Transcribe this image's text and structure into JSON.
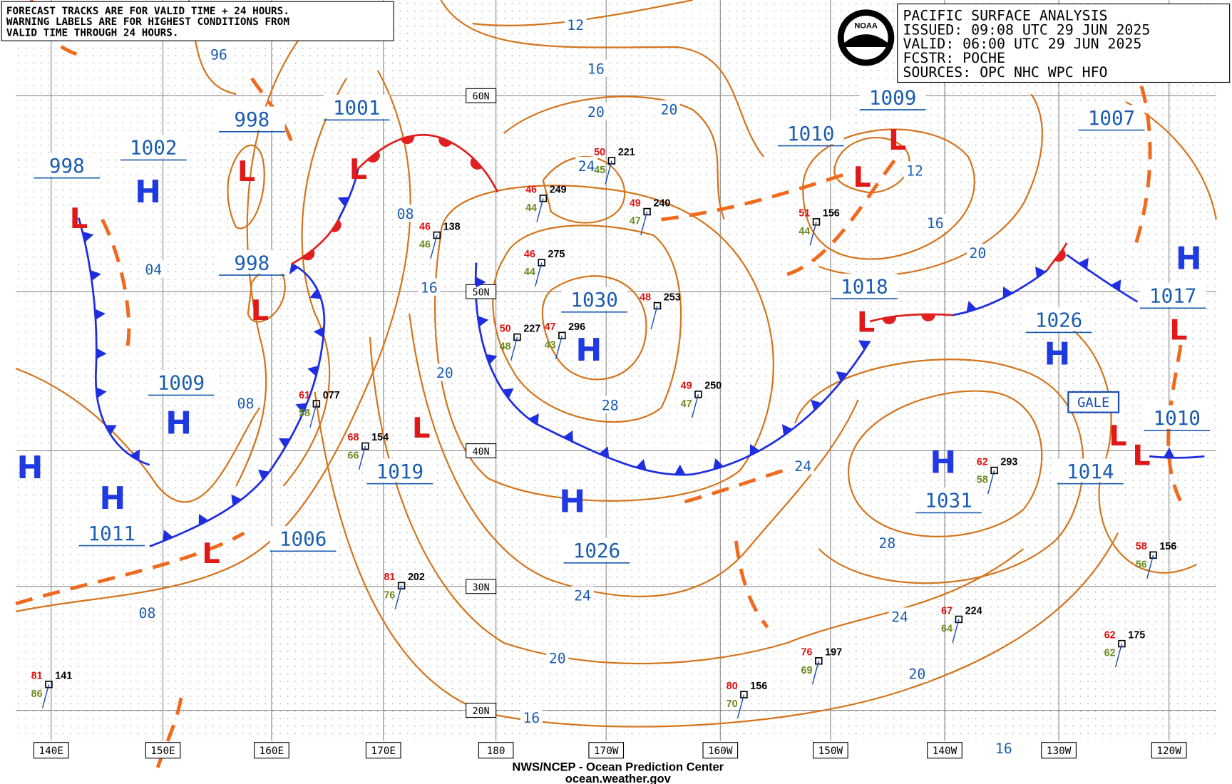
{
  "notes": [
    "FORECAST TRACKS ARE FOR VALID TIME + 24 HOURS.",
    "WARNING LABELS ARE FOR HIGHEST CONDITIONS FROM",
    "VALID TIME THROUGH 24 HOURS."
  ],
  "info_box": [
    "PACIFIC SURFACE ANALYSIS",
    "ISSUED:  09:08 UTC 29 JUN 2025",
    "VALID:   06:00 UTC 29 JUN 2025",
    "FCSTR:   POCHE",
    "SOURCES: OPC NHC WPC HFO"
  ],
  "logo": "NOAA",
  "centers": [
    {
      "type": "H"
    },
    {
      "type": "H"
    },
    {
      "type": "H"
    },
    {
      "type": "H"
    },
    {
      "type": "H"
    },
    {
      "type": "H"
    },
    {
      "type": "H"
    },
    {
      "type": "H"
    },
    {
      "type": "H"
    },
    {
      "type": "L"
    },
    {
      "type": "L"
    },
    {
      "type": "L"
    },
    {
      "type": "L"
    },
    {
      "type": "L"
    },
    {
      "type": "L"
    },
    {
      "type": "L"
    },
    {
      "type": "L"
    },
    {
      "type": "L"
    },
    {
      "type": "L"
    },
    {
      "type": "L"
    },
    {
      "type": "L"
    }
  ],
  "pressure_labels": [
    "1002",
    "1009",
    "1011",
    "1026",
    "1030",
    "1031",
    "1026",
    "1017",
    "1010",
    "1007",
    "1014",
    "1019",
    "1006",
    "1018",
    "1009",
    "1010",
    "1001",
    "998",
    "998",
    "998"
  ],
  "isobar_labels": [
    "96",
    "12",
    "16",
    "20",
    "20",
    "24",
    "08",
    "04",
    "16",
    "20",
    "08",
    "28",
    "24",
    "16",
    "20",
    "12",
    "28",
    "24",
    "24",
    "20",
    "20",
    "16",
    "16",
    "08"
  ],
  "latitude_labels": [
    "60N",
    "50N",
    "40N",
    "30N",
    "20N"
  ],
  "longitude_labels": [
    "140E",
    "150E",
    "160E",
    "170E",
    "180",
    "170W",
    "160W",
    "150W",
    "140W",
    "130W",
    "120W"
  ],
  "warning_label": "GALE",
  "stations": [
    {
      "pressure": "221",
      "temp": "50",
      "dewpoint": "45"
    },
    {
      "pressure": "249",
      "temp": "46",
      "dewpoint": "44"
    },
    {
      "pressure": "240",
      "temp": "49",
      "dewpoint": "47"
    },
    {
      "pressure": "138",
      "temp": "46",
      "dewpoint": "46"
    },
    {
      "pressure": "275",
      "temp": "46",
      "dewpoint": "44"
    },
    {
      "pressure": "253",
      "temp": "48"
    },
    {
      "pressure": "227",
      "temp": "50",
      "dewpoint": "48"
    },
    {
      "pressure": "296",
      "temp": "47",
      "dewpoint": "43"
    },
    {
      "pressure": "250",
      "temp": "49",
      "dewpoint": "47"
    },
    {
      "pressure": "156",
      "temp": "51",
      "dewpoint": "44"
    },
    {
      "pressure": "293",
      "temp": "62",
      "dewpoint": "58"
    },
    {
      "pressure": "224",
      "temp": "67",
      "dewpoint": "64"
    },
    {
      "pressure": "175",
      "temp": "62",
      "dewpoint": "62"
    },
    {
      "pressure": "197",
      "temp": "76",
      "dewpoint": "69"
    },
    {
      "pressure": "156",
      "temp": "80",
      "dewpoint": "70"
    },
    {
      "pressure": "202",
      "temp": "81",
      "dewpoint": "76"
    },
    {
      "pressure": "141",
      "temp": "81",
      "dewpoint": "86"
    },
    {
      "pressure": "154",
      "temp": "68",
      "dewpoint": "66"
    },
    {
      "pressure": "077",
      "temp": "61",
      "dewpoint": "58"
    },
    {
      "pressure": "156",
      "temp": "58",
      "dewpoint": "56"
    }
  ],
  "footer": [
    "NWS/NCEP - Ocean Prediction Center",
    "ocean.weather.gov"
  ]
}
